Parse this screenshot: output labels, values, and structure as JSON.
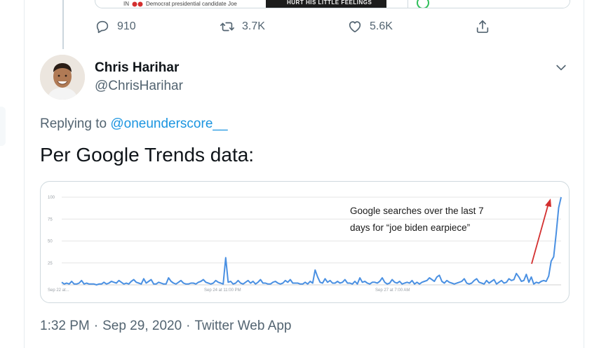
{
  "previous_tweet": {
    "media_caption": "Democrat presidential candidate Joe",
    "media_caption_prefix": "IN",
    "media_meme_text": "HURT HIS LITTLE FEELINGS",
    "actions": {
      "reply_count": "910",
      "retweet_count": "3.7K",
      "like_count": "5.6K"
    }
  },
  "tweet": {
    "author_name": "Chris Harihar",
    "author_handle": "@ChrisHarihar",
    "replying_prefix": "Replying to",
    "replying_to": "@oneunderscore__",
    "text": "Per Google Trends data:",
    "timestamp_time": "1:32 PM",
    "timestamp_date": "Sep 29, 2020",
    "timestamp_source": "Twitter Web App",
    "separator": "·"
  },
  "colors": {
    "link": "#1b95e0",
    "line": "#4a90e2",
    "arrow": "#d32f2f",
    "muted": "#536471"
  },
  "chart_data": {
    "type": "line",
    "annotation_line1": "Google searches over the last 7",
    "annotation_line2": "days for “joe biden earpiece”",
    "y_ticks": [
      "100",
      "75",
      "50",
      "25"
    ],
    "x_ticks": [
      "Sep 22 at...",
      "Sep 24 at 11:00 PM",
      "Sep 27 at 7:00 AM"
    ],
    "ylim": [
      0,
      100
    ],
    "grid": true,
    "series": [
      {
        "values": [
          3,
          1,
          2,
          1,
          4,
          1,
          1,
          2,
          5,
          1,
          2,
          1,
          1,
          1,
          0,
          1,
          1,
          3,
          1,
          2,
          4,
          3,
          2,
          5,
          3,
          1,
          2,
          1,
          4,
          6,
          3,
          2,
          1,
          7,
          2,
          4,
          6,
          1,
          1,
          3,
          2,
          1,
          1,
          8,
          4,
          2,
          1,
          3,
          5,
          2,
          1,
          1,
          2,
          2,
          1,
          3,
          4,
          6,
          3,
          2,
          1,
          2,
          5,
          3,
          2,
          1,
          31,
          3,
          4,
          1,
          2,
          5,
          2,
          1,
          3,
          5,
          2,
          4,
          1,
          3,
          6,
          2,
          2,
          1,
          1,
          3,
          4,
          2,
          1,
          2,
          5,
          3,
          6,
          2,
          2,
          2,
          1,
          1,
          3,
          1,
          4,
          2,
          17,
          9,
          3,
          2,
          7,
          3,
          5,
          2,
          2,
          4,
          2,
          3,
          6,
          2,
          2,
          1,
          4,
          1,
          8,
          3,
          4,
          2,
          1,
          3,
          3,
          2,
          4,
          8,
          3,
          1,
          2,
          6,
          3,
          2,
          4,
          1,
          2,
          3,
          2,
          5,
          1,
          3,
          1,
          3,
          4,
          5,
          8,
          6,
          4,
          9,
          11,
          4,
          2,
          5,
          3,
          2,
          1,
          2,
          3,
          4,
          7,
          2,
          1,
          2,
          5,
          7,
          3,
          2,
          1,
          5,
          2,
          4,
          6,
          1,
          3,
          5,
          2,
          3,
          7,
          5,
          6,
          13,
          9,
          4,
          5,
          12,
          3,
          9,
          1,
          3,
          2,
          4,
          5,
          4,
          10,
          27,
          32,
          58,
          88,
          100
        ]
      }
    ]
  }
}
